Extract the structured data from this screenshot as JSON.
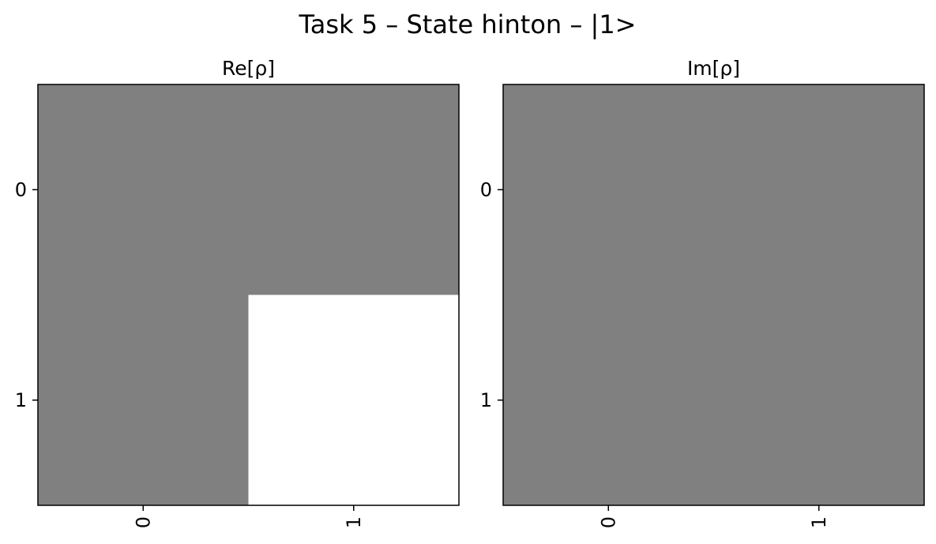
{
  "chart_data": {
    "type": "heatmap",
    "title": "Task 5 – State hinton – |1>",
    "colormap": {
      "min_color": "#000000",
      "mid_color": "#808080",
      "max_color": "#ffffff",
      "vmin": -1,
      "vmax": 1
    },
    "panels": [
      {
        "title": "Re[ρ]",
        "x_ticks": [
          "0",
          "1"
        ],
        "y_ticks": [
          "0",
          "1"
        ],
        "values": [
          [
            0,
            0
          ],
          [
            0,
            1
          ]
        ]
      },
      {
        "title": "Im[ρ]",
        "x_ticks": [
          "0",
          "1"
        ],
        "y_ticks": [
          "0",
          "1"
        ],
        "values": [
          [
            0,
            0
          ],
          [
            0,
            0
          ]
        ]
      }
    ]
  }
}
